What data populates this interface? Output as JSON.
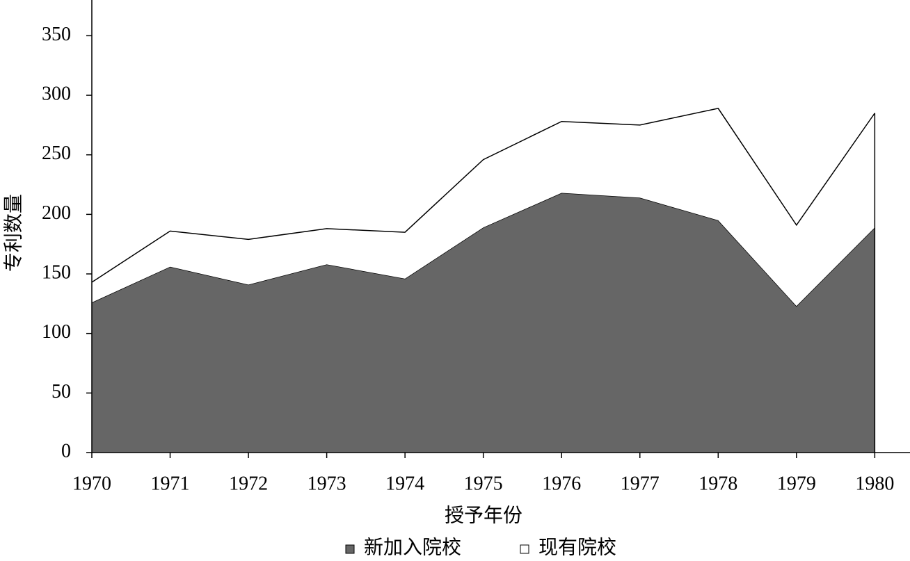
{
  "chart_data": {
    "type": "area",
    "stacked": true,
    "xlabel": "授予年份",
    "ylabel": "专利数量",
    "x": [
      1970,
      1971,
      1972,
      1973,
      1974,
      1975,
      1976,
      1977,
      1978,
      1979,
      1980
    ],
    "series": [
      {
        "name": "新加入院校",
        "color": "#666666",
        "values": [
          126,
          156,
          141,
          158,
          146,
          189,
          218,
          214,
          195,
          123,
          189
        ]
      },
      {
        "name": "现有院校",
        "color": "#ffffff",
        "values": [
          17,
          30,
          38,
          30,
          39,
          57,
          60,
          61,
          94,
          68,
          96
        ]
      }
    ],
    "xlim": [
      1970,
      1980.45
    ],
    "ylim": [
      0,
      380
    ],
    "xticks": [
      1970,
      1971,
      1972,
      1973,
      1974,
      1975,
      1976,
      1977,
      1978,
      1979,
      1980
    ],
    "yticks": [
      0,
      50,
      100,
      150,
      200,
      250,
      300,
      350
    ],
    "legend": "bottom"
  }
}
